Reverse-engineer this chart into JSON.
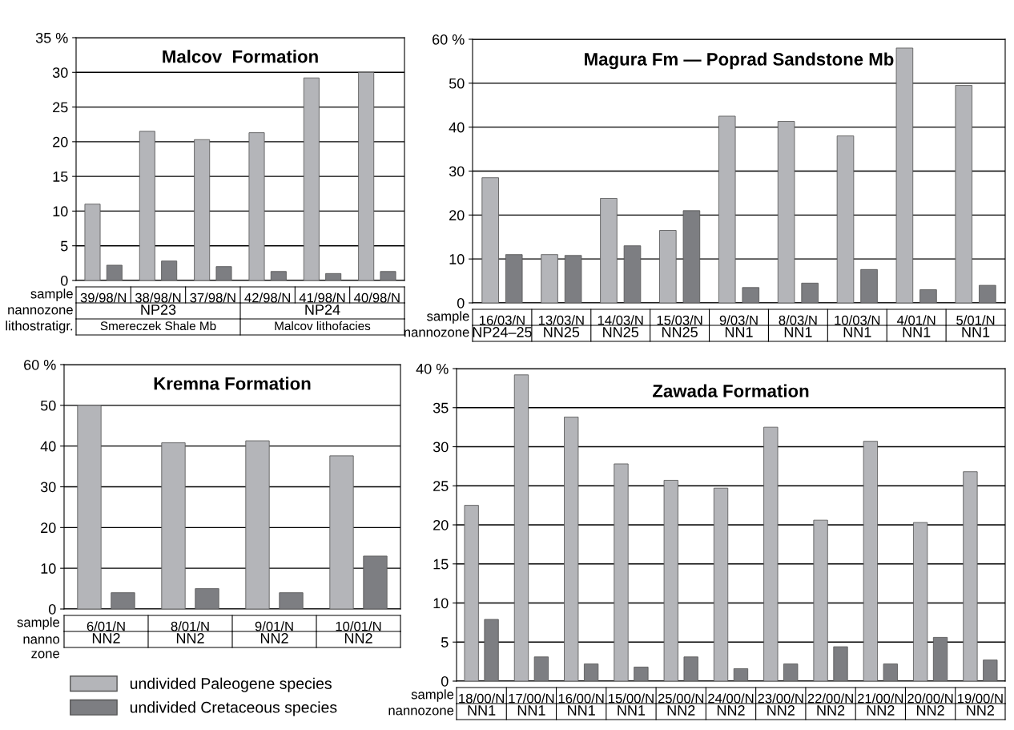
{
  "chart_data": [
    {
      "type": "bar",
      "title": "Malcov  Formation",
      "xlabel": "sample",
      "categories": [
        "39/98/N",
        "38/98/N",
        "37/98/N",
        "42/98/N",
        "41/98/N",
        "40/98/N"
      ],
      "series": [
        {
          "color": "#b4b5b9",
          "values": [
            11,
            21.5,
            20.3,
            21.3,
            29.2,
            30
          ]
        },
        {
          "color": "#7d7e82",
          "values": [
            2.2,
            2.8,
            2,
            1.3,
            1,
            1.3
          ]
        }
      ],
      "ylim": [
        0,
        35
      ],
      "yticks": [
        0,
        5,
        10,
        15,
        20,
        25,
        30,
        {
          "value": 35,
          "label": "35 %"
        }
      ],
      "grid": "y",
      "annotations": [
        "nannozone",
        "NP23",
        "NP24",
        "lithostratigr.",
        "Smereczek Shale Mb",
        "Malcov lithofacies"
      ]
    },
    {
      "type": "bar",
      "title": "Magura Fm — Poprad Sandstone Mb",
      "xlabel": "sample",
      "categories": [
        "16/03/N",
        "13/03/N",
        "14/03/N",
        "15/03/N",
        "9/03/N",
        "8/03/N",
        "10/03/N",
        "4/01/N",
        "5/01/N"
      ],
      "series": [
        {
          "color": "#b4b5b9",
          "values": [
            28.5,
            11,
            23.8,
            16.5,
            42.5,
            41.3,
            38,
            58,
            49.5
          ]
        },
        {
          "color": "#7d7e82",
          "values": [
            11,
            10.8,
            13,
            21,
            3.5,
            4.5,
            7.6,
            3,
            4
          ]
        }
      ],
      "ylim": [
        0,
        60
      ],
      "yticks": [
        0,
        10,
        20,
        30,
        40,
        50,
        {
          "value": 60,
          "label": "60 %"
        }
      ],
      "grid": "y",
      "annotations": [
        "nannozone",
        "NP24–25",
        "NN25",
        "NN25",
        "NN25",
        "NN1",
        "NN1",
        "NN1",
        "NN1",
        "NN1"
      ]
    },
    {
      "type": "bar",
      "title": "Kremna Formation",
      "xlabel": "sample",
      "categories": [
        "6/01/N",
        "8/01/N",
        "9/01/N",
        "10/01/N"
      ],
      "series": [
        {
          "name": "undivided Paleogene species",
          "color": "#b4b5b9",
          "values": [
            50,
            40.8,
            41.3,
            37.6
          ]
        },
        {
          "name": "undivided Cretaceous species",
          "color": "#7d7e82",
          "values": [
            4,
            5,
            4,
            13
          ]
        }
      ],
      "ylim": [
        0,
        60
      ],
      "yticks": [
        0,
        10,
        20,
        30,
        40,
        50,
        {
          "value": 60,
          "label": "60 %"
        }
      ],
      "grid": "y",
      "legend": "bottom",
      "annotations": [
        "nanno\nzone",
        "NN2",
        "NN2",
        "NN2",
        "NN2"
      ]
    },
    {
      "type": "bar",
      "title": "Zawada Formation",
      "xlabel": "sample",
      "categories": [
        "18/00/N",
        "17/00/N",
        "16/00/N",
        "15/00/N",
        "25/00/N",
        "24/00/N",
        "23/00/N",
        "22/00/N",
        "21/00/N",
        "20/00/N",
        "19/00/N"
      ],
      "series": [
        {
          "color": "#b4b5b9",
          "values": [
            22.5,
            39.2,
            33.8,
            27.8,
            25.7,
            24.7,
            32.5,
            20.6,
            30.7,
            20.3,
            26.8
          ]
        },
        {
          "color": "#7d7e82",
          "values": [
            7.9,
            3.1,
            2.2,
            1.8,
            3.1,
            1.6,
            2.2,
            4.4,
            2.2,
            5.6,
            2.7
          ]
        }
      ],
      "ylim": [
        0,
        40
      ],
      "yticks": [
        0,
        5,
        10,
        15,
        20,
        25,
        30,
        35,
        {
          "value": 40,
          "label": "40 %"
        }
      ],
      "grid": "y",
      "annotations": [
        "nannozone",
        "NN1",
        "NN1",
        "NN1",
        "NN1",
        "NN2",
        "NN2",
        "NN2",
        "NN2",
        "NN2",
        "NN2",
        "NN2"
      ]
    }
  ]
}
